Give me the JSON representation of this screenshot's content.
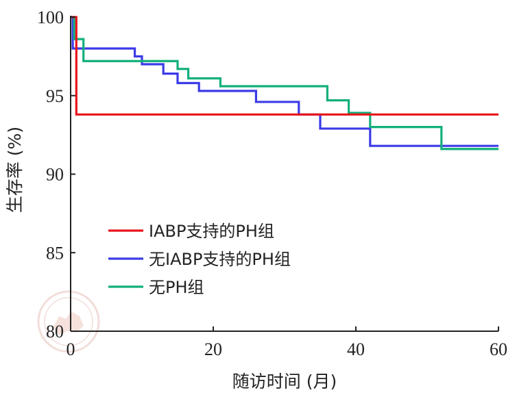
{
  "chart_data": {
    "type": "line",
    "step": true,
    "title": "",
    "xlabel": "随访时间 (月)",
    "ylabel": "生存率 (%)",
    "xlim": [
      0,
      60
    ],
    "ylim": [
      80,
      100
    ],
    "xticks": [
      "0",
      "20",
      "40",
      "60"
    ],
    "yticks": [
      "80",
      "85",
      "90",
      "95",
      "100"
    ],
    "grid": false,
    "legend_position": "lower-left",
    "series": [
      {
        "name": "IABP支持的PH组",
        "color": "#e8141b",
        "x": [
          0,
          0.8,
          60
        ],
        "y": [
          100,
          93.8,
          93.8
        ]
      },
      {
        "name": "无IABP支持的PH组",
        "color": "#3b3be8",
        "x": [
          0,
          0.3,
          9,
          10,
          13,
          15,
          18,
          26,
          32,
          35,
          42,
          60
        ],
        "y": [
          100,
          98.0,
          97.5,
          97.0,
          96.4,
          95.8,
          95.3,
          94.6,
          93.8,
          92.9,
          91.8,
          91.8
        ]
      },
      {
        "name": "无PH组",
        "color": "#12b07a",
        "x": [
          0,
          0.5,
          1.8,
          15,
          16.5,
          21,
          36,
          39,
          42,
          52,
          60
        ],
        "y": [
          100,
          98.6,
          97.2,
          96.7,
          96.1,
          95.6,
          94.7,
          93.9,
          93.0,
          91.6,
          91.6
        ]
      }
    ],
    "watermark": "中华医学会 CHINESE MEDICAL ASSOCIATION"
  }
}
